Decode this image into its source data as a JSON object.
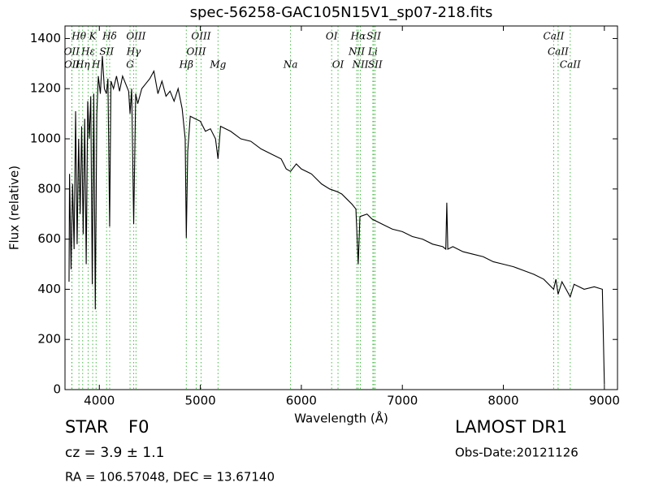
{
  "chart_data": {
    "type": "line",
    "title": "spec-56258-GAC105N15V1_sp07-218.fits",
    "x_label": "Wavelength (Å)",
    "y_label": "Flux (relative)",
    "xlim": [
      3660,
      9130
    ],
    "ylim": [
      0,
      1450
    ],
    "xticks": [
      4000,
      5000,
      6000,
      7000,
      8000,
      9000
    ],
    "yticks": [
      0,
      200,
      400,
      600,
      800,
      1000,
      1200,
      1400
    ],
    "color": "#000000",
    "line_color": "#44bb44",
    "x": [
      3700,
      3705,
      3720,
      3735,
      3750,
      3765,
      3780,
      3795,
      3810,
      3825,
      3840,
      3855,
      3870,
      3885,
      3900,
      3915,
      3930,
      3945,
      3960,
      3975,
      3990,
      4010,
      4030,
      4050,
      4070,
      4085,
      4102,
      4115,
      4140,
      4170,
      4200,
      4230,
      4260,
      4290,
      4304,
      4320,
      4340,
      4360,
      4380,
      4420,
      4460,
      4500,
      4540,
      4580,
      4620,
      4660,
      4700,
      4740,
      4780,
      4820,
      4850,
      4861,
      4875,
      4900,
      4950,
      5000,
      5050,
      5100,
      5150,
      5175,
      5200,
      5300,
      5400,
      5500,
      5600,
      5700,
      5800,
      5850,
      5893,
      5950,
      6000,
      6100,
      6150,
      6200,
      6280,
      6350,
      6400,
      6450,
      6500,
      6540,
      6563,
      6580,
      6650,
      6700,
      6800,
      6900,
      7000,
      7100,
      7200,
      7300,
      7400,
      7430,
      7440,
      7450,
      7500,
      7600,
      7700,
      7800,
      7900,
      8000,
      8100,
      8200,
      8300,
      8400,
      8498,
      8520,
      8542,
      8580,
      8662,
      8700,
      8800,
      8900,
      8980,
      9000
    ],
    "values": [
      430,
      860,
      480,
      820,
      560,
      1110,
      580,
      1000,
      700,
      1050,
      620,
      1080,
      500,
      1150,
      1000,
      1170,
      420,
      1180,
      320,
      1100,
      1250,
      1180,
      1330,
      1200,
      1180,
      1240,
      650,
      1230,
      1200,
      1250,
      1190,
      1250,
      1220,
      1190,
      1100,
      1200,
      660,
      1180,
      1140,
      1200,
      1220,
      1240,
      1270,
      1180,
      1230,
      1170,
      1190,
      1150,
      1200,
      1120,
      1000,
      605,
      950,
      1090,
      1080,
      1070,
      1030,
      1040,
      1000,
      920,
      1050,
      1030,
      1000,
      990,
      960,
      940,
      920,
      880,
      870,
      900,
      880,
      860,
      840,
      820,
      800,
      790,
      780,
      760,
      740,
      720,
      500,
      690,
      700,
      680,
      660,
      640,
      630,
      610,
      600,
      580,
      570,
      560,
      745,
      560,
      570,
      550,
      540,
      530,
      510,
      500,
      490,
      475,
      460,
      440,
      400,
      440,
      380,
      430,
      370,
      420,
      400,
      410,
      400,
      20
    ],
    "line_tiers": [
      [
        {
          "label": "Hθ",
          "wavelength": 3798
        },
        {
          "label": "K",
          "wavelength": 3934
        },
        {
          "label": "Hδ",
          "wavelength": 4102
        },
        {
          "label": "OIII",
          "wavelength": 4363
        },
        {
          "label": "OIII",
          "wavelength": 5007
        },
        {
          "label": "OI",
          "wavelength": 6300
        },
        {
          "label": "Hα",
          "wavelength": 6563
        },
        {
          "label": "SII",
          "wavelength": 6717
        },
        {
          "label": "CaII",
          "wavelength": 8498
        }
      ],
      [
        {
          "label": "OII",
          "wavelength": 3727
        },
        {
          "label": "Hε",
          "wavelength": 3889
        },
        {
          "label": "SII",
          "wavelength": 4072
        },
        {
          "label": "Hγ",
          "wavelength": 4340
        },
        {
          "label": "OIII",
          "wavelength": 4959
        },
        {
          "label": "NII",
          "wavelength": 6548
        },
        {
          "label": "Li",
          "wavelength": 6708
        },
        {
          "label": "CaII",
          "wavelength": 8542
        }
      ],
      [
        {
          "label": "OII",
          "wavelength": 3729
        },
        {
          "label": "Hη",
          "wavelength": 3835
        },
        {
          "label": "H",
          "wavelength": 3968
        },
        {
          "label": "G",
          "wavelength": 4304
        },
        {
          "label": "Hβ",
          "wavelength": 4861
        },
        {
          "label": "Mg",
          "wavelength": 5175
        },
        {
          "label": "Na",
          "wavelength": 5893
        },
        {
          "label": "OI",
          "wavelength": 6363
        },
        {
          "label": "NII",
          "wavelength": 6584
        },
        {
          "label": "SII",
          "wavelength": 6731
        },
        {
          "label": "CaII",
          "wavelength": 8662
        }
      ]
    ]
  },
  "footer": {
    "object": "STAR",
    "subclass": "F0",
    "redshift": "cz = 3.9 ± 1.1",
    "coords": "RA = 106.57048, DEC = 13.67140",
    "survey": "LAMOST DR1",
    "obs_date": "Obs-Date:20121126"
  }
}
